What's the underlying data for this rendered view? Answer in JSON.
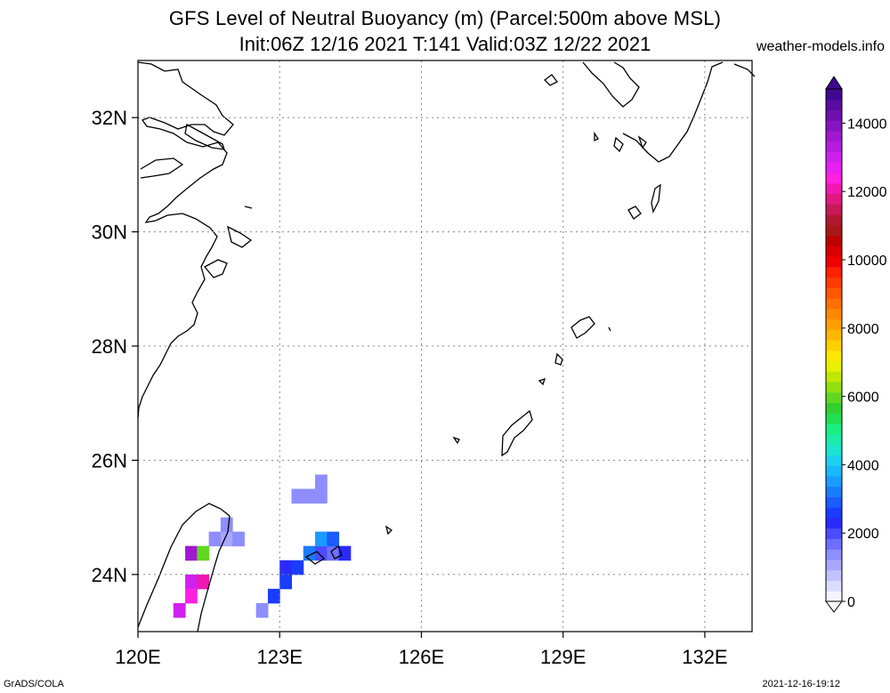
{
  "title": {
    "line1": "GFS Level of Neutral Buoyancy (m) (Parcel:500m above MSL)",
    "line2": "Init:06Z 12/16 2021 T:141 Valid:03Z 12/22 2021",
    "site": "weather-models.info"
  },
  "footer": {
    "left": "GrADS/COLA",
    "right": "2021-12-16-19:12"
  },
  "map": {
    "lon_range": [
      120,
      133
    ],
    "lat_range": [
      23,
      33
    ],
    "lon_ticks": [
      "120E",
      "123E",
      "126E",
      "129E",
      "132E"
    ],
    "lat_ticks": [
      "24N",
      "26N",
      "28N",
      "30N",
      "32N"
    ],
    "grid": true
  },
  "colorbar": {
    "labels": [
      "0",
      "2000",
      "4000",
      "6000",
      "8000",
      "10000",
      "12000",
      "14000"
    ],
    "colors": [
      "#f4f4ff",
      "#dcdcff",
      "#c2c2ff",
      "#a8a8ff",
      "#8e8eff",
      "#6e6eff",
      "#4c4cff",
      "#2a2aff",
      "#1a3cff",
      "#1a5cff",
      "#1a7cff",
      "#1a9cff",
      "#1ab8ff",
      "#1ad2f0",
      "#1ae6d0",
      "#1aecaa",
      "#1aee80",
      "#20e050",
      "#30d030",
      "#60d820",
      "#90e010",
      "#c0e800",
      "#e8f000",
      "#ffe800",
      "#ffd000",
      "#ffb800",
      "#ffa000",
      "#ff8800",
      "#ff7000",
      "#ff5800",
      "#ff3c00",
      "#ff2000",
      "#f00000",
      "#d80000",
      "#c00000",
      "#a81818",
      "#b01830",
      "#c81858",
      "#e01880",
      "#f018b0",
      "#ff20e0",
      "#e820f0",
      "#d020f0",
      "#b81ce0",
      "#a018d0",
      "#8814c0",
      "#7010b0",
      "#580ca0",
      "#400890"
    ]
  },
  "field_cells": [
    {
      "lon": 121.0,
      "lat": 24.25,
      "v": 13500
    },
    {
      "lon": 121.25,
      "lat": 24.25,
      "v": 6000
    },
    {
      "lon": 121.0,
      "lat": 23.75,
      "v": 13000
    },
    {
      "lon": 121.25,
      "lat": 23.75,
      "v": 12000
    },
    {
      "lon": 121.0,
      "lat": 23.5,
      "v": 12500
    },
    {
      "lon": 120.75,
      "lat": 23.25,
      "v": 13000
    },
    {
      "lon": 121.5,
      "lat": 24.5,
      "v": 1500
    },
    {
      "lon": 121.75,
      "lat": 24.5,
      "v": 1200
    },
    {
      "lon": 122.0,
      "lat": 24.5,
      "v": 1400
    },
    {
      "lon": 121.75,
      "lat": 24.75,
      "v": 1300
    },
    {
      "lon": 123.0,
      "lat": 24.0,
      "v": 2300
    },
    {
      "lon": 123.25,
      "lat": 24.0,
      "v": 2600
    },
    {
      "lon": 123.5,
      "lat": 24.25,
      "v": 3200
    },
    {
      "lon": 123.75,
      "lat": 24.25,
      "v": 2000
    },
    {
      "lon": 124.0,
      "lat": 24.25,
      "v": 1800
    },
    {
      "lon": 123.75,
      "lat": 24.5,
      "v": 3600
    },
    {
      "lon": 124.0,
      "lat": 24.5,
      "v": 3000
    },
    {
      "lon": 124.25,
      "lat": 24.25,
      "v": 2200
    },
    {
      "lon": 123.0,
      "lat": 23.75,
      "v": 2500
    },
    {
      "lon": 122.75,
      "lat": 23.5,
      "v": 2600
    },
    {
      "lon": 122.5,
      "lat": 23.25,
      "v": 1400
    },
    {
      "lon": 123.25,
      "lat": 25.25,
      "v": 1300
    },
    {
      "lon": 123.5,
      "lat": 25.25,
      "v": 1500
    },
    {
      "lon": 123.75,
      "lat": 25.25,
      "v": 1400
    },
    {
      "lon": 123.75,
      "lat": 25.5,
      "v": 1300
    }
  ]
}
